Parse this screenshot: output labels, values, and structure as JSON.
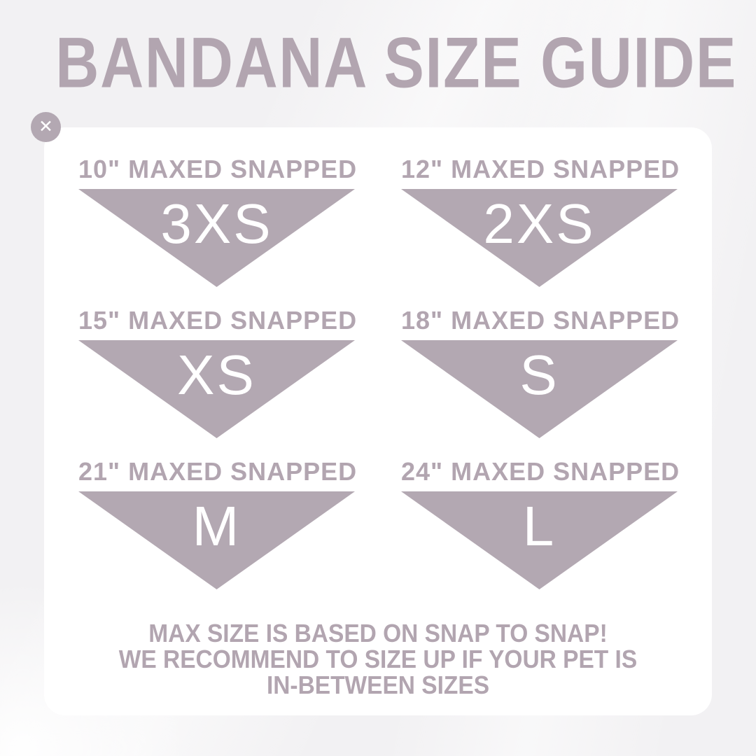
{
  "title": "BANDANA SIZE GUIDE",
  "colors": {
    "accent": "#b3a8b2",
    "accent_text": "#b2a5b0",
    "card_bg": "#ffffff",
    "page_bg": "#f2f1f3",
    "size_label": "#ffffff"
  },
  "icons": {
    "close": "✕"
  },
  "cells": [
    {
      "header": "10\" MAXED SNAPPED",
      "size": "3XS"
    },
    {
      "header": "12\" MAXED SNAPPED",
      "size": "2XS"
    },
    {
      "header": "15\" MAXED SNAPPED",
      "size": "XS"
    },
    {
      "header": "18\" MAXED SNAPPED",
      "size": "S"
    },
    {
      "header": "21\" MAXED SNAPPED",
      "size": "M"
    },
    {
      "header": "24\" MAXED SNAPPED",
      "size": "L"
    }
  ],
  "footnote": {
    "lines": [
      "MAX SIZE IS BASED ON SNAP TO SNAP!",
      "WE RECOMMEND TO SIZE UP IF YOUR PET IS",
      "IN-BETWEEN SIZES"
    ]
  }
}
